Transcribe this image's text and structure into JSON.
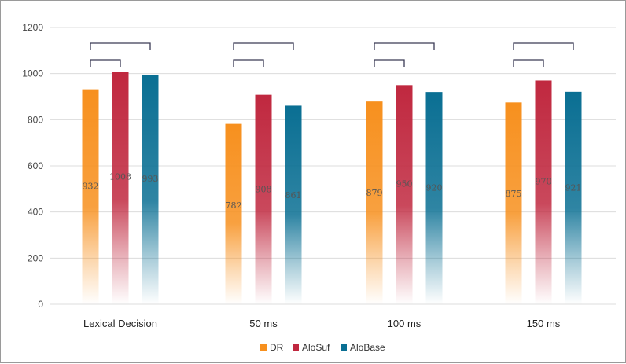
{
  "chart_data": {
    "type": "bar",
    "categories": [
      "Lexical Decision",
      "50 ms",
      "100 ms",
      "150 ms"
    ],
    "series": [
      {
        "name": "DR",
        "values": [
          932,
          782,
          879,
          875
        ],
        "color": "#f7901e"
      },
      {
        "name": "AloSuf",
        "values": [
          1008,
          908,
          950,
          970
        ],
        "color": "#c0283f"
      },
      {
        "name": "AloBase",
        "values": [
          993,
          861,
          920,
          921
        ],
        "color": "#0a6f93"
      }
    ],
    "ylim": [
      0,
      1200
    ],
    "yticks": [
      0,
      200,
      400,
      600,
      800,
      1000,
      1200
    ],
    "grid": true,
    "legend_position": "bottom",
    "bar_gradient_fade": true,
    "significance_brackets": [
      {
        "category_index": 0,
        "from_series": 0,
        "to_series": 1,
        "level": "inner"
      },
      {
        "category_index": 0,
        "from_series": 0,
        "to_series": 2,
        "level": "outer"
      },
      {
        "category_index": 1,
        "from_series": 0,
        "to_series": 1,
        "level": "inner"
      },
      {
        "category_index": 1,
        "from_series": 0,
        "to_series": 2,
        "level": "outer"
      },
      {
        "category_index": 2,
        "from_series": 0,
        "to_series": 1,
        "level": "inner"
      },
      {
        "category_index": 2,
        "from_series": 0,
        "to_series": 2,
        "level": "outer"
      },
      {
        "category_index": 3,
        "from_series": 0,
        "to_series": 1,
        "level": "inner"
      },
      {
        "category_index": 3,
        "from_series": 0,
        "to_series": 2,
        "level": "outer"
      }
    ]
  }
}
